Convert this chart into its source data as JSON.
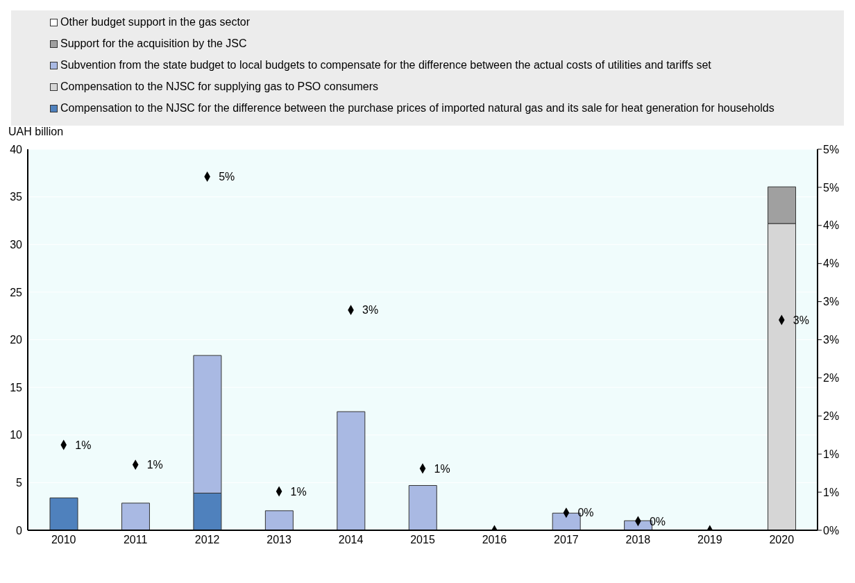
{
  "chart_data": {
    "type": "bar",
    "stacked": true,
    "ylabel": "UAH billion",
    "legend": "top",
    "grid": "y",
    "categories": [
      "2010",
      "2011",
      "2012",
      "2013",
      "2014",
      "2015",
      "2016",
      "2017",
      "2018",
      "2019",
      "2020"
    ],
    "ylim": [
      0,
      40
    ],
    "yticks": [
      0,
      5,
      10,
      15,
      20,
      25,
      30,
      35,
      40
    ],
    "y2lim": [
      0,
      5
    ],
    "y2ticks": [
      {
        "value": 0,
        "label": "0%"
      },
      {
        "value": 0.5,
        "label": "1%"
      },
      {
        "value": 1,
        "label": "1%"
      },
      {
        "value": 1.5,
        "label": "2%"
      },
      {
        "value": 2,
        "label": "2%"
      },
      {
        "value": 2.5,
        "label": "3%"
      },
      {
        "value": 3,
        "label": "3%"
      },
      {
        "value": 3.5,
        "label": "4%"
      },
      {
        "value": 4,
        "label": "4%"
      },
      {
        "value": 4.5,
        "label": "5%"
      },
      {
        "value": 5,
        "label": "5%"
      }
    ],
    "series": [
      {
        "name": "Compensation to the NJSC for the difference between the purchase prices of imported natural gas and its sale for heat generation for households",
        "color": "#4f81bd",
        "values": [
          3.4,
          null,
          3.9,
          null,
          null,
          null,
          null,
          null,
          null,
          null,
          null
        ]
      },
      {
        "name": "Compensation to the NJSC for supplying gas to PSO consumers",
        "color": "#d6d6d6",
        "values": [
          null,
          null,
          null,
          null,
          null,
          null,
          null,
          null,
          null,
          null,
          32.2
        ]
      },
      {
        "name": "Subvention from the state budget to local budgets to compensate for the difference between the actual costs of utilities and tariffs set",
        "color": "#a9b9e3",
        "values": [
          null,
          2.85,
          14.45,
          2.05,
          12.45,
          4.7,
          null,
          1.8,
          1.0,
          null,
          null
        ]
      },
      {
        "name": "Support for the acquisition by the JSC",
        "color": "#a0a0a0",
        "values": [
          null,
          null,
          null,
          null,
          null,
          null,
          null,
          null,
          null,
          null,
          3.85
        ]
      },
      {
        "name": "Other budget support in the gas sector",
        "color": "#ffffff",
        "values": [
          null,
          null,
          null,
          null,
          null,
          null,
          null,
          null,
          null,
          null,
          null
        ]
      },
      {
        "type": "scatter",
        "axis": "y2",
        "marker": "diamond",
        "color": "#000000",
        "values": [
          1.12,
          0.86,
          4.64,
          0.51,
          2.89,
          0.81,
          0,
          0.23,
          0.12,
          0,
          2.76
        ],
        "value_labels": [
          "1%",
          "1%",
          "5%",
          "1%",
          "3%",
          "1%",
          null,
          "0%",
          "0%",
          null,
          "3%"
        ]
      }
    ]
  }
}
